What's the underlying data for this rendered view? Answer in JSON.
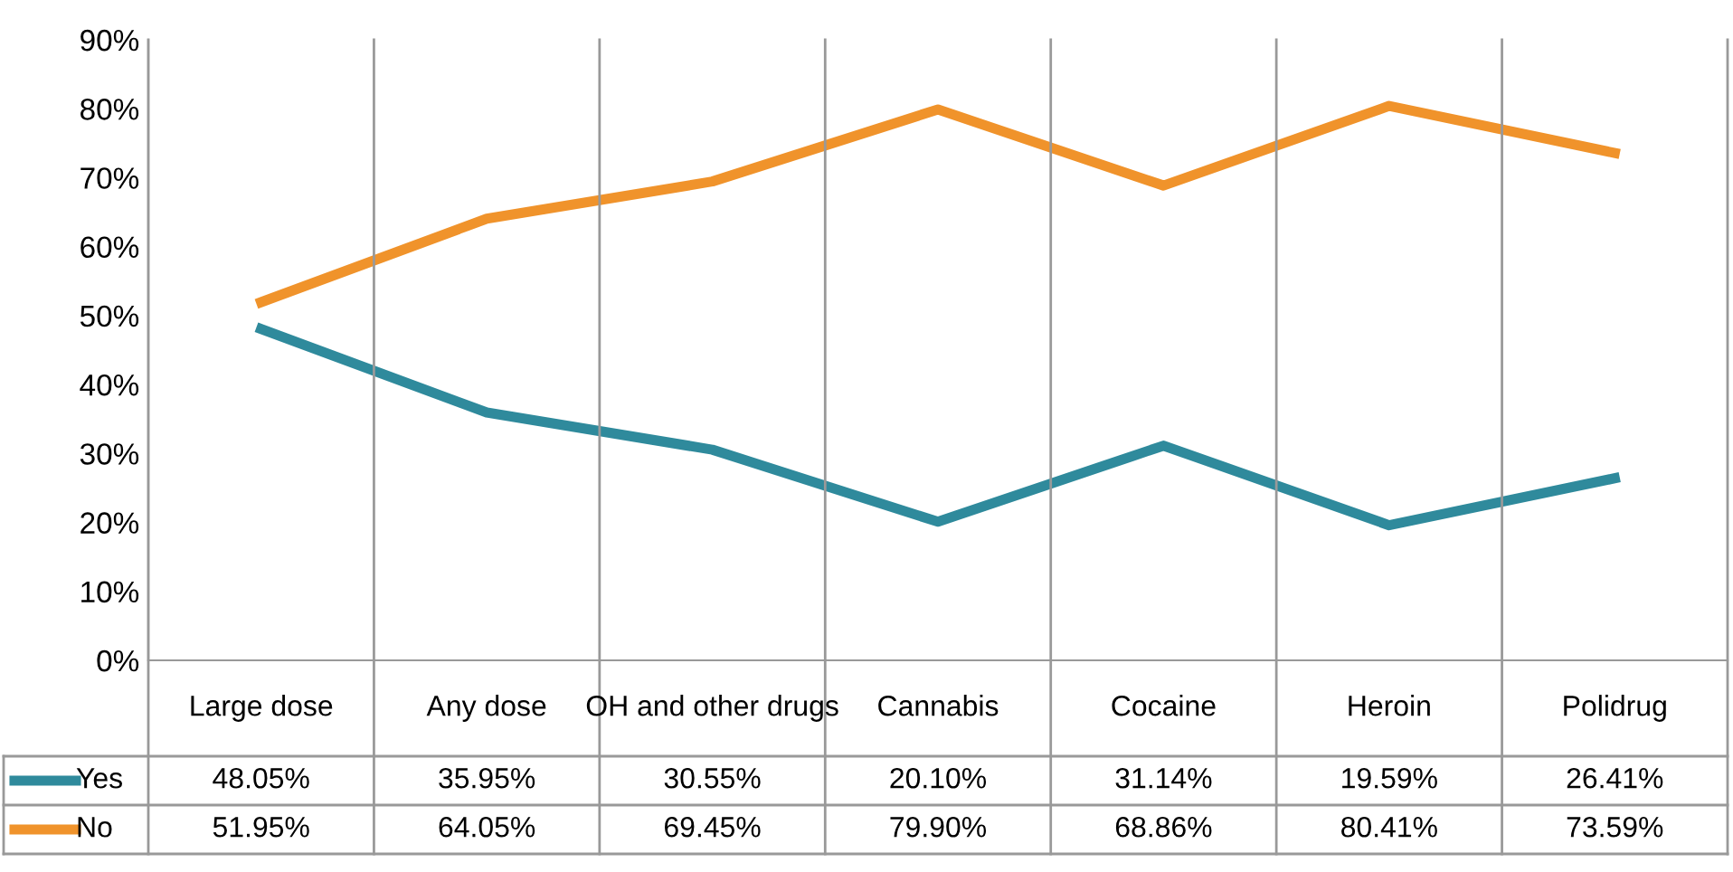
{
  "chart_data": {
    "type": "line",
    "categories": [
      "Large dose",
      "Any dose",
      "OH and other drugs",
      "Cannabis",
      "Cocaine",
      "Heroin",
      "Polidrug"
    ],
    "series": [
      {
        "name": "Yes",
        "color": "#2f8a9c",
        "values": [
          48.05,
          35.95,
          30.55,
          20.1,
          31.14,
          19.59,
          26.41
        ],
        "value_labels": [
          "48.05%",
          "35.95%",
          "30.55%",
          "20.10%",
          "31.14%",
          "19.59%",
          "26.41%"
        ]
      },
      {
        "name": "No",
        "color": "#f0932b",
        "values": [
          51.95,
          64.05,
          69.45,
          79.9,
          68.86,
          80.41,
          73.59
        ],
        "value_labels": [
          "51.95%",
          "64.05%",
          "69.45%",
          "79.90%",
          "68.86%",
          "80.41%",
          "73.59%"
        ]
      }
    ],
    "ylim": [
      0,
      90
    ],
    "yticks": [
      {
        "value": 0,
        "label": "0%"
      },
      {
        "value": 10,
        "label": "10%"
      },
      {
        "value": 20,
        "label": "20%"
      },
      {
        "value": 30,
        "label": "30%"
      },
      {
        "value": 40,
        "label": "40%"
      },
      {
        "value": 50,
        "label": "50%"
      },
      {
        "value": 60,
        "label": "60%"
      },
      {
        "value": 70,
        "label": "70%"
      },
      {
        "value": 80,
        "label": "80%"
      },
      {
        "value": 90,
        "label": "90%"
      }
    ],
    "legend": "bottom",
    "marker": "none",
    "line_style": "solid"
  }
}
